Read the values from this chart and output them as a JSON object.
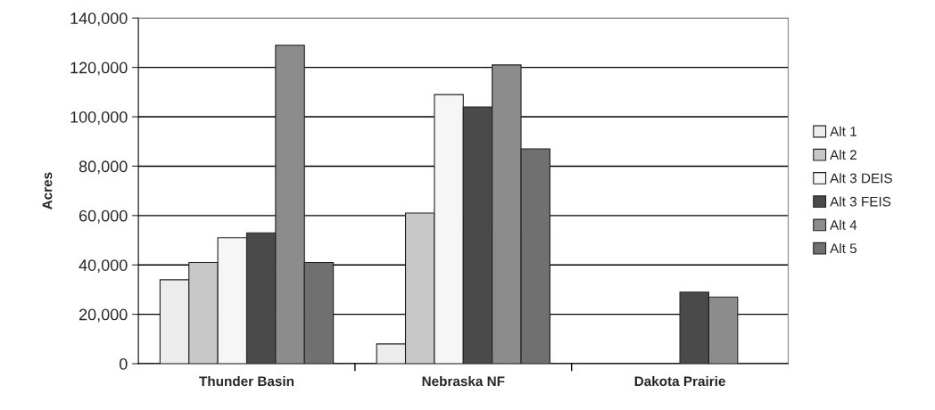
{
  "chart_data": {
    "type": "bar",
    "ylabel": "Acres",
    "categories": [
      "Thunder Basin",
      "Nebraska NF",
      "Dakota Prairie"
    ],
    "series": [
      {
        "name": "Alt 1",
        "color": "#ececec",
        "values": [
          34000,
          8000,
          null
        ]
      },
      {
        "name": "Alt 2",
        "color": "#c8c8c8",
        "values": [
          41000,
          61000,
          null
        ]
      },
      {
        "name": "Alt 3 DEIS",
        "color": "#f6f6f6",
        "values": [
          51000,
          109000,
          null
        ]
      },
      {
        "name": "Alt 3 FEIS",
        "color": "#4a4a4a",
        "values": [
          53000,
          104000,
          29000
        ]
      },
      {
        "name": "Alt 4",
        "color": "#8c8c8c",
        "values": [
          129000,
          121000,
          27000
        ]
      },
      {
        "name": "Alt 5",
        "color": "#707070",
        "values": [
          41000,
          87000,
          null
        ]
      }
    ],
    "ylim": [
      0,
      140000
    ],
    "yticks": [
      {
        "value": 0,
        "label": "0"
      },
      {
        "value": 20000,
        "label": "20,000"
      },
      {
        "value": 40000,
        "label": "40,000"
      },
      {
        "value": 60000,
        "label": "60,000"
      },
      {
        "value": 80000,
        "label": "80,000"
      },
      {
        "value": 100000,
        "label": "100,000"
      },
      {
        "value": 120000,
        "label": "120,000"
      },
      {
        "value": 140000,
        "label": "140,000"
      }
    ],
    "grid": "y",
    "legend": "right"
  }
}
